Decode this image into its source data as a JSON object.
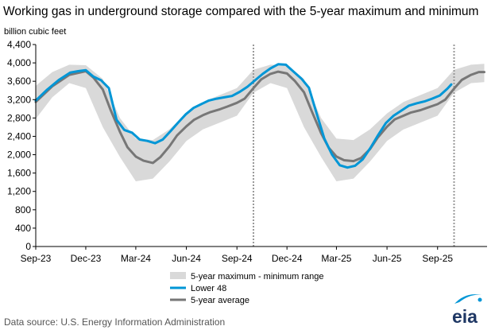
{
  "chart_data": {
    "type": "line",
    "title": "Working gas in underground  storage compared with the 5-year maximum and minimum",
    "ylabel": "billion cubic feet",
    "ylim": [
      0,
      4400
    ],
    "yticks": [
      "0",
      "400",
      "800",
      "1,200",
      "1,600",
      "2,000",
      "2,400",
      "2,800",
      "3,200",
      "3,600",
      "4,000",
      "4,400"
    ],
    "yticks_values": [
      0,
      400,
      800,
      1200,
      1600,
      2000,
      2400,
      2800,
      3200,
      3600,
      4000,
      4400
    ],
    "xlim": [
      "2023-09-01",
      "2025-11-30"
    ],
    "xticks": [
      {
        "date": "2023-09-01",
        "label": "Sep-23"
      },
      {
        "date": "2023-12-01",
        "label": "Dec-23"
      },
      {
        "date": "2024-03-01",
        "label": "Mar-24"
      },
      {
        "date": "2024-06-01",
        "label": "Jun-24"
      },
      {
        "date": "2024-09-01",
        "label": "Sep-24"
      },
      {
        "date": "2024-12-01",
        "label": "Dec-24"
      },
      {
        "date": "2025-03-01",
        "label": "Mar-25"
      },
      {
        "date": "2025-06-01",
        "label": "Jun-25"
      },
      {
        "date": "2025-09-01",
        "label": "Sep-25"
      }
    ],
    "year_dividers": [
      "2024-10-01",
      "2025-10-01"
    ],
    "grid": false,
    "legend_position": "bottom-center",
    "legend": [
      {
        "key": "range",
        "label": "5-year maximum - minimum range"
      },
      {
        "key": "lower48",
        "label": "Lower 48"
      },
      {
        "key": "avg",
        "label": "5-year average"
      }
    ],
    "colors": {
      "range": "#d9d9d9",
      "lower48": "#0096d6",
      "avg": "#777777",
      "divider": "#999999",
      "axis": "#000000"
    },
    "range_band": {
      "name": "5-year maximum - minimum range",
      "x": [
        "2023-09-01",
        "2023-10-01",
        "2023-11-01",
        "2023-12-01",
        "2024-01-01",
        "2024-02-01",
        "2024-03-01",
        "2024-04-01",
        "2024-05-01",
        "2024-06-01",
        "2024-07-01",
        "2024-08-01",
        "2024-09-01",
        "2024-10-01",
        "2024-11-01",
        "2024-12-01",
        "2025-01-01",
        "2025-02-01",
        "2025-03-01",
        "2025-04-01",
        "2025-05-01",
        "2025-06-01",
        "2025-07-01",
        "2025-08-01",
        "2025-09-01",
        "2025-10-01",
        "2025-11-01",
        "2025-11-25"
      ],
      "max": [
        3500,
        3800,
        3960,
        3950,
        3650,
        2800,
        2350,
        2320,
        2550,
        2900,
        3150,
        3300,
        3450,
        3850,
        3960,
        3950,
        3650,
        2800,
        2350,
        2320,
        2550,
        2900,
        3150,
        3300,
        3450,
        3850,
        3960,
        3980
      ],
      "min": [
        2780,
        3250,
        3560,
        3450,
        2600,
        1950,
        1420,
        1480,
        1850,
        2300,
        2550,
        2700,
        2850,
        3350,
        3560,
        3450,
        2600,
        1950,
        1420,
        1480,
        1850,
        2300,
        2550,
        2700,
        2850,
        3350,
        3560,
        3580
      ]
    },
    "series": [
      {
        "key": "lower48",
        "name": "Lower 48",
        "x": [
          "2023-09-01",
          "2023-09-22",
          "2023-10-13",
          "2023-11-03",
          "2023-11-17",
          "2023-12-01",
          "2023-12-15",
          "2023-12-29",
          "2024-01-12",
          "2024-01-26",
          "2024-02-09",
          "2024-02-23",
          "2024-03-08",
          "2024-03-22",
          "2024-04-05",
          "2024-04-19",
          "2024-05-03",
          "2024-05-17",
          "2024-05-31",
          "2024-06-14",
          "2024-06-28",
          "2024-07-12",
          "2024-07-26",
          "2024-08-09",
          "2024-08-23",
          "2024-09-06",
          "2024-09-20",
          "2024-10-04",
          "2024-10-18",
          "2024-11-01",
          "2024-11-15",
          "2024-11-29",
          "2024-12-13",
          "2024-12-27",
          "2025-01-10",
          "2025-01-24",
          "2025-02-07",
          "2025-02-21",
          "2025-03-07",
          "2025-03-21",
          "2025-04-04",
          "2025-04-18",
          "2025-05-02",
          "2025-05-16",
          "2025-05-30",
          "2025-06-13",
          "2025-06-27",
          "2025-07-11",
          "2025-07-25",
          "2025-08-08",
          "2025-08-22",
          "2025-09-05",
          "2025-09-19",
          "2025-09-26"
        ],
        "values": [
          3180,
          3420,
          3630,
          3790,
          3820,
          3840,
          3700,
          3620,
          3450,
          2760,
          2540,
          2480,
          2330,
          2300,
          2250,
          2330,
          2510,
          2700,
          2880,
          3020,
          3100,
          3180,
          3220,
          3250,
          3280,
          3370,
          3480,
          3620,
          3760,
          3880,
          3970,
          3960,
          3810,
          3660,
          3460,
          2900,
          2350,
          2000,
          1770,
          1720,
          1760,
          1900,
          2150,
          2430,
          2690,
          2850,
          2960,
          3070,
          3120,
          3160,
          3220,
          3290,
          3440,
          3530
        ]
      },
      {
        "key": "avg",
        "name": "5-year average",
        "x": [
          "2023-09-01",
          "2023-10-01",
          "2023-11-01",
          "2023-12-01",
          "2023-12-15",
          "2024-01-01",
          "2024-01-15",
          "2024-02-01",
          "2024-02-15",
          "2024-03-01",
          "2024-03-15",
          "2024-04-01",
          "2024-04-15",
          "2024-05-01",
          "2024-05-15",
          "2024-06-01",
          "2024-06-15",
          "2024-07-01",
          "2024-07-15",
          "2024-08-01",
          "2024-08-15",
          "2024-09-01",
          "2024-09-15",
          "2024-10-01",
          "2024-10-15",
          "2024-11-01",
          "2024-11-15",
          "2024-12-01",
          "2024-12-15",
          "2025-01-01",
          "2025-01-15",
          "2025-02-01",
          "2025-02-15",
          "2025-03-01",
          "2025-03-15",
          "2025-04-01",
          "2025-04-15",
          "2025-05-01",
          "2025-05-15",
          "2025-06-01",
          "2025-06-15",
          "2025-07-01",
          "2025-07-15",
          "2025-08-01",
          "2025-08-15",
          "2025-09-01",
          "2025-09-15",
          "2025-10-01",
          "2025-10-15",
          "2025-11-01",
          "2025-11-15",
          "2025-11-25"
        ],
        "values": [
          3150,
          3490,
          3740,
          3820,
          3680,
          3420,
          2980,
          2500,
          2160,
          1960,
          1870,
          1820,
          1950,
          2180,
          2420,
          2620,
          2760,
          2860,
          2930,
          2990,
          3050,
          3130,
          3220,
          3450,
          3640,
          3760,
          3810,
          3770,
          3610,
          3360,
          2950,
          2470,
          2150,
          1960,
          1880,
          1860,
          1930,
          2120,
          2370,
          2610,
          2770,
          2850,
          2920,
          2970,
          3030,
          3100,
          3200,
          3440,
          3630,
          3740,
          3800,
          3800
        ]
      }
    ]
  },
  "source_text": "Data source:  U.S. Energy Information Administration",
  "logo_text": "eia"
}
